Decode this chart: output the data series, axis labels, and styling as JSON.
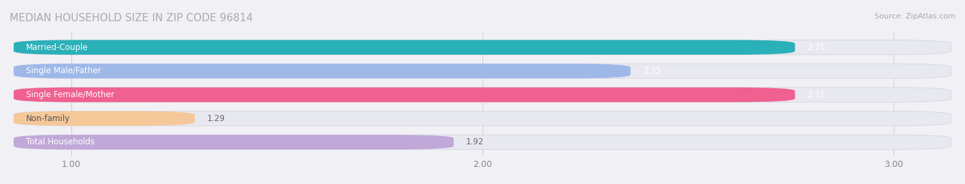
{
  "title": "MEDIAN HOUSEHOLD SIZE IN ZIP CODE 96814",
  "source": "Source: ZipAtlas.com",
  "categories": [
    "Married-Couple",
    "Single Male/Father",
    "Single Female/Mother",
    "Non-family",
    "Total Households"
  ],
  "values": [
    2.75,
    2.35,
    2.75,
    1.29,
    1.92
  ],
  "bar_colors": [
    "#2ab0b8",
    "#9eb8e8",
    "#f06090",
    "#f5c89a",
    "#c0a8d8"
  ],
  "xlim": [
    0.85,
    3.15
  ],
  "xticks": [
    1.0,
    2.0,
    3.0
  ],
  "xtick_labels": [
    "1.00",
    "2.00",
    "3.00"
  ],
  "background_color": "#f0f0f5",
  "bar_background_color": "#e8e8f0",
  "title_fontsize": 11,
  "label_fontsize": 8.5,
  "value_fontsize": 8.5,
  "tick_fontsize": 9,
  "source_fontsize": 8
}
